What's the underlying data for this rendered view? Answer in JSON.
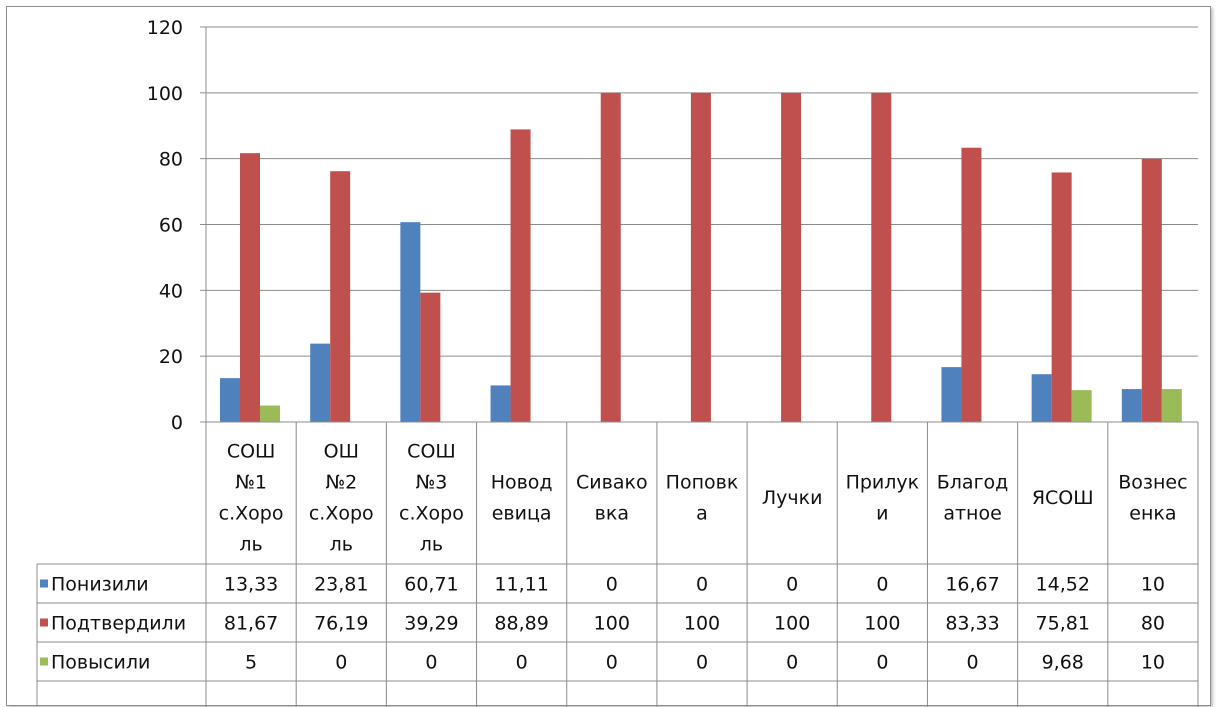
{
  "chart_data": {
    "type": "bar",
    "categories": [
      [
        "СОШ",
        "№1",
        "с.Хоро",
        "ль"
      ],
      [
        "ОШ",
        "№2",
        "с.Хоро",
        "ль"
      ],
      [
        "СОШ",
        "№3",
        "с.Хоро",
        "ль"
      ],
      [
        "Новод",
        "евица"
      ],
      [
        "Сивако",
        "вка"
      ],
      [
        "Поповк",
        "а"
      ],
      [
        "Лучки"
      ],
      [
        "Прилук",
        "и"
      ],
      [
        "Благод",
        "атное"
      ],
      [
        "ЯСОШ"
      ],
      [
        "Вознес",
        "енка"
      ]
    ],
    "series": [
      {
        "name": "Понизили",
        "color": "#4f81bd",
        "values": [
          13.33,
          23.81,
          60.71,
          11.11,
          0,
          0,
          0,
          0,
          16.67,
          14.52,
          10
        ],
        "labels": [
          "13,33",
          "23,81",
          "60,71",
          "11,11",
          "0",
          "0",
          "0",
          "0",
          "16,67",
          "14,52",
          "10"
        ]
      },
      {
        "name": "Подтвердили",
        "color": "#c0504d",
        "values": [
          81.67,
          76.19,
          39.29,
          88.89,
          100,
          100,
          100,
          100,
          83.33,
          75.81,
          80
        ],
        "labels": [
          "81,67",
          "76,19",
          "39,29",
          "88,89",
          "100",
          "100",
          "100",
          "100",
          "83,33",
          "75,81",
          "80"
        ]
      },
      {
        "name": "Повысили",
        "color": "#9bbb59",
        "values": [
          5,
          0,
          0,
          0,
          0,
          0,
          0,
          0,
          0,
          9.68,
          10
        ],
        "labels": [
          "5",
          "0",
          "0",
          "0",
          "0",
          "0",
          "0",
          "0",
          "0",
          "9,68",
          "10"
        ]
      }
    ],
    "yticks": [
      "0",
      "20",
      "40",
      "60",
      "80",
      "100",
      "120"
    ],
    "ylim": [
      0,
      120
    ],
    "grid": true,
    "data_table": true,
    "title": "",
    "xlabel": "",
    "ylabel": ""
  }
}
